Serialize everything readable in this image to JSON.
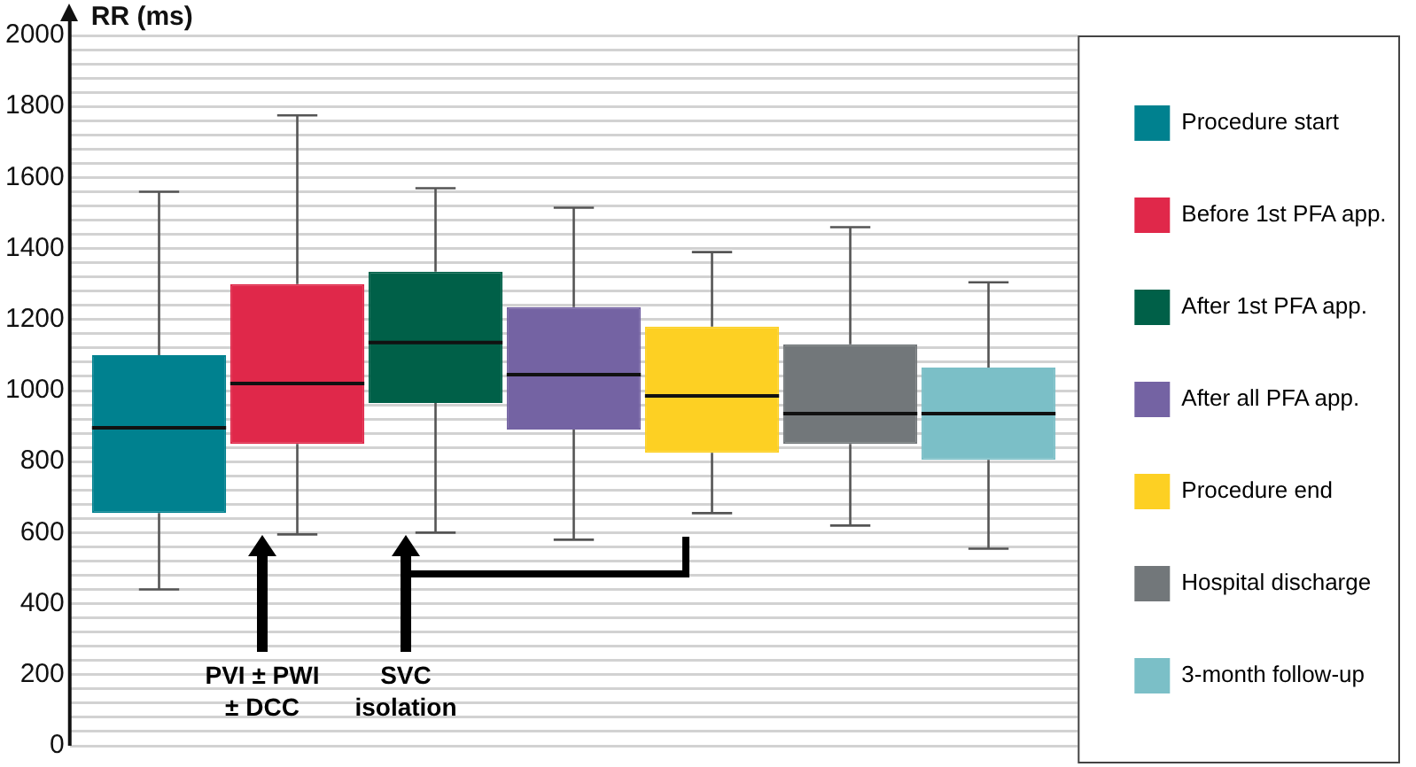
{
  "chart_data": {
    "type": "box",
    "ylabel": "RR (ms)",
    "categories": [
      null
    ],
    "series": [
      {
        "name": "Procedure start",
        "color": "#00818f",
        "boxes": [
          {
            "low": 440,
            "q1": 655,
            "median": 895,
            "q3": 1100,
            "high": 1560
          }
        ]
      },
      {
        "name": "Before 1st PFA app.",
        "color": "#e0284a",
        "boxes": [
          {
            "low": 595,
            "q1": 850,
            "median": 1020,
            "q3": 1300,
            "high": 1775
          }
        ]
      },
      {
        "name": "After 1st PFA app.",
        "color": "#006048",
        "boxes": [
          {
            "low": 600,
            "q1": 965,
            "median": 1135,
            "q3": 1335,
            "high": 1570
          }
        ]
      },
      {
        "name": "After all PFA app.",
        "color": "#7463a3",
        "boxes": [
          {
            "low": 580,
            "q1": 890,
            "median": 1045,
            "q3": 1235,
            "high": 1515
          }
        ]
      },
      {
        "name": "Procedure end",
        "color": "#fdd023",
        "boxes": [
          {
            "low": 655,
            "q1": 825,
            "median": 985,
            "q3": 1180,
            "high": 1390
          }
        ]
      },
      {
        "name": "Hospital discharge",
        "color": "#72777a",
        "boxes": [
          {
            "low": 620,
            "q1": 850,
            "median": 935,
            "q3": 1130,
            "high": 1460
          }
        ]
      },
      {
        "name": "3-month follow-up",
        "color": "#7bbfc7",
        "boxes": [
          {
            "low": 555,
            "q1": 805,
            "median": 935,
            "q3": 1065,
            "high": 1305
          }
        ]
      }
    ],
    "ylim": [
      0,
      2000
    ],
    "yticks": [
      0,
      {
        "value": 40,
        "label": null
      },
      {
        "value": 80,
        "label": null
      },
      {
        "value": 120,
        "label": null
      },
      {
        "value": 160,
        "label": null
      },
      200,
      {
        "value": 240,
        "label": null
      },
      {
        "value": 280,
        "label": null
      },
      {
        "value": 320,
        "label": null
      },
      {
        "value": 360,
        "label": null
      },
      400,
      {
        "value": 440,
        "label": null
      },
      {
        "value": 480,
        "label": null
      },
      {
        "value": 520,
        "label": null
      },
      {
        "value": 560,
        "label": null
      },
      600,
      {
        "value": 640,
        "label": null
      },
      {
        "value": 680,
        "label": null
      },
      {
        "value": 720,
        "label": null
      },
      {
        "value": 760,
        "label": null
      },
      800,
      {
        "value": 840,
        "label": null
      },
      {
        "value": 880,
        "label": null
      },
      {
        "value": 920,
        "label": null
      },
      {
        "value": 960,
        "label": null
      },
      1000,
      {
        "value": 1040,
        "label": null
      },
      {
        "value": 1080,
        "label": null
      },
      {
        "value": 1120,
        "label": null
      },
      {
        "value": 1160,
        "label": null
      },
      1200,
      {
        "value": 1240,
        "label": null
      },
      {
        "value": 1280,
        "label": null
      },
      {
        "value": 1320,
        "label": null
      },
      {
        "value": 1360,
        "label": null
      },
      1400,
      {
        "value": 1440,
        "label": null
      },
      {
        "value": 1480,
        "label": null
      },
      {
        "value": 1520,
        "label": null
      },
      {
        "value": 1560,
        "label": null
      },
      1600,
      {
        "value": 1640,
        "label": null
      },
      {
        "value": 1680,
        "label": null
      },
      {
        "value": 1720,
        "label": null
      },
      {
        "value": 1760,
        "label": null
      },
      1800,
      {
        "value": 1840,
        "label": null
      },
      {
        "value": 1880,
        "label": null
      },
      {
        "value": 1920,
        "label": null
      },
      {
        "value": 1960,
        "label": null
      },
      2000
    ],
    "grid": "y",
    "legend": "right",
    "annotations": [
      "PVI ± PWI ± DCC",
      "SVC isolation"
    ]
  }
}
